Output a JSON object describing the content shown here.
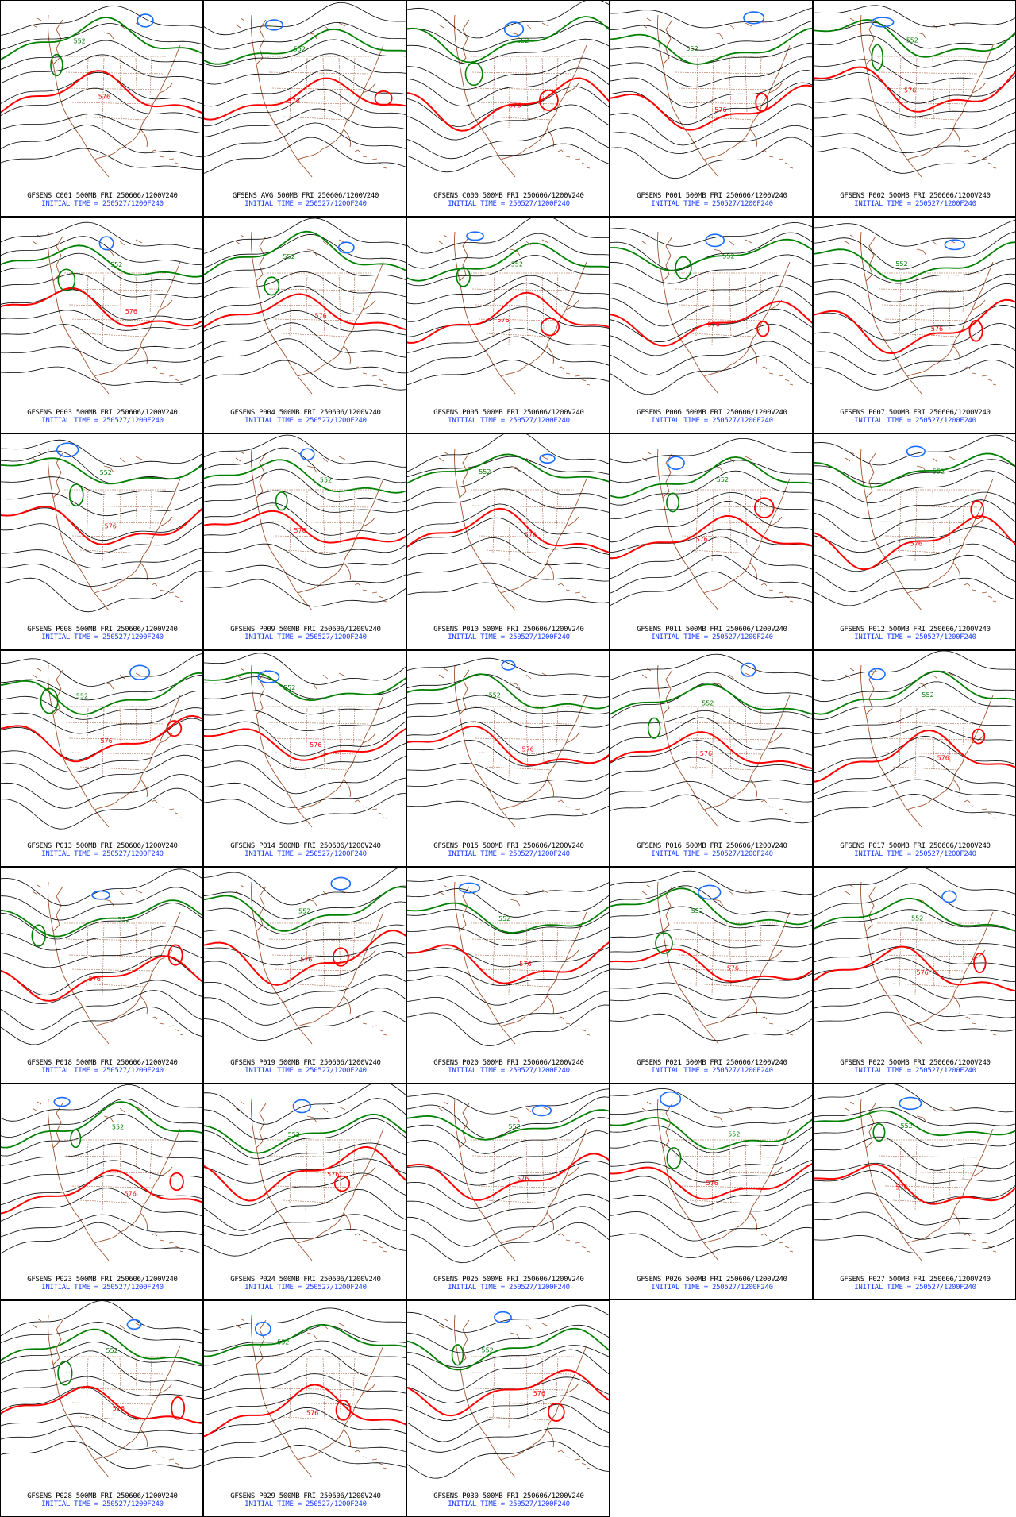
{
  "colors": {
    "contour": "#000000",
    "contour_552": "#008000",
    "contour_576": "#ff0000",
    "contour_low": "#1a6cff",
    "geography": "#a0522d",
    "caption": "#000000",
    "caption_time": "#1a3cff"
  },
  "contour_labels": {
    "low": "552",
    "high": "576"
  },
  "initial_time_label": "INITIAL TIME = 250527/1200F240",
  "panels": [
    {
      "title": "GFSENS C001 500MB FRI 250606/1200V240",
      "variant": 0
    },
    {
      "title": "GFSENS AVG 500MB FRI 250606/1200V240",
      "variant": 1
    },
    {
      "title": "GFSENS C000 500MB FRI 250606/1200V240",
      "variant": 2
    },
    {
      "title": "GFSENS P001 500MB FRI 250606/1200V240",
      "variant": 3
    },
    {
      "title": "GFSENS P002 500MB FRI 250606/1200V240",
      "variant": 4
    },
    {
      "title": "GFSENS P003 500MB FRI 250606/1200V240",
      "variant": 5
    },
    {
      "title": "GFSENS P004 500MB FRI 250606/1200V240",
      "variant": 6
    },
    {
      "title": "GFSENS P005 500MB FRI 250606/1200V240",
      "variant": 7
    },
    {
      "title": "GFSENS P006 500MB FRI 250606/1200V240",
      "variant": 8
    },
    {
      "title": "GFSENS P007 500MB FRI 250606/1200V240",
      "variant": 9
    },
    {
      "title": "GFSENS P008 500MB FRI 250606/1200V240",
      "variant": 10
    },
    {
      "title": "GFSENS P009 500MB FRI 250606/1200V240",
      "variant": 11
    },
    {
      "title": "GFSENS P010 500MB FRI 250606/1200V240",
      "variant": 12
    },
    {
      "title": "GFSENS P011 500MB FRI 250606/1200V240",
      "variant": 13
    },
    {
      "title": "GFSENS P012 500MB FRI 250606/1200V240",
      "variant": 14
    },
    {
      "title": "GFSENS P013 500MB FRI 250606/1200V240",
      "variant": 15
    },
    {
      "title": "GFSENS P014 500MB FRI 250606/1200V240",
      "variant": 16
    },
    {
      "title": "GFSENS P015 500MB FRI 250606/1200V240",
      "variant": 17
    },
    {
      "title": "GFSENS P016 500MB FRI 250606/1200V240",
      "variant": 18
    },
    {
      "title": "GFSENS P017 500MB FRI 250606/1200V240",
      "variant": 19
    },
    {
      "title": "GFSENS P018 500MB FRI 250606/1200V240",
      "variant": 20
    },
    {
      "title": "GFSENS P019 500MB FRI 250606/1200V240",
      "variant": 21
    },
    {
      "title": "GFSENS P020 500MB FRI 250606/1200V240",
      "variant": 22
    },
    {
      "title": "GFSENS P021 500MB FRI 250606/1200V240",
      "variant": 23
    },
    {
      "title": "GFSENS P022 500MB FRI 250606/1200V240",
      "variant": 24
    },
    {
      "title": "GFSENS P023 500MB FRI 250606/1200V240",
      "variant": 25
    },
    {
      "title": "GFSENS P024 500MB FRI 250606/1200V240",
      "variant": 26
    },
    {
      "title": "GFSENS P025 500MB FRI 250606/1200V240",
      "variant": 27
    },
    {
      "title": "GFSENS P026 500MB FRI 250606/1200V240",
      "variant": 28
    },
    {
      "title": "GFSENS P027 500MB FRI 250606/1200V240",
      "variant": 29
    },
    {
      "title": "GFSENS P028 500MB FRI 250606/1200V240",
      "variant": 30
    },
    {
      "title": "GFSENS P029 500MB FRI 250606/1200V240",
      "variant": 31
    },
    {
      "title": "GFSENS P030 500MB FRI 250606/1200V240",
      "variant": 32
    }
  ]
}
